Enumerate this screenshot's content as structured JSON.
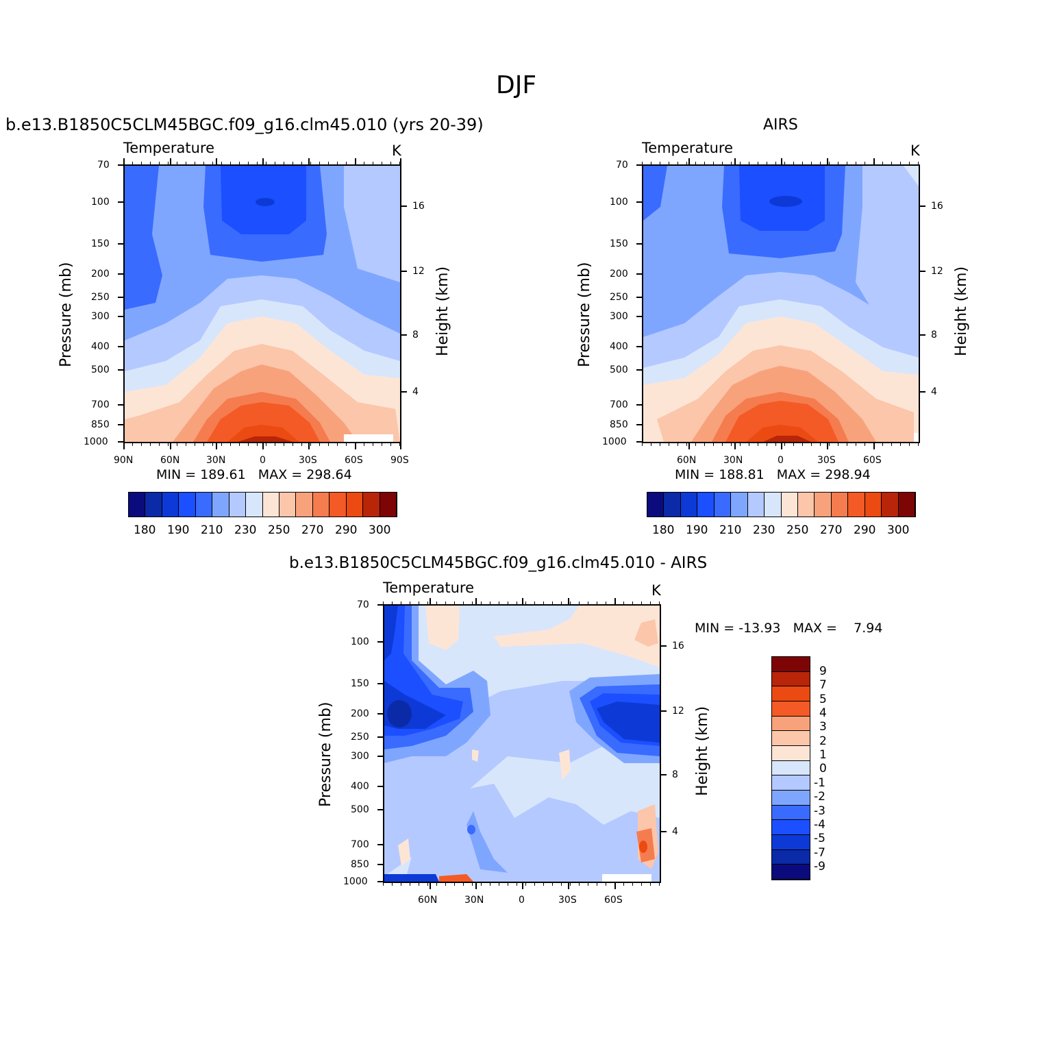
{
  "figure": {
    "title": "DJF"
  },
  "chart_data": [
    {
      "type": "heatmap",
      "id": "model",
      "title": "b.e13.B1850C5CLM45BGC.f09_g16.clm45.010 (yrs 20-39)",
      "left_string": "Temperature",
      "right_string": "K",
      "ylabel": "Pressure (mb)",
      "y2label": "Height (km)",
      "x_ticks": [
        "90N",
        "60N",
        "30N",
        "0",
        "30S",
        "60S",
        "90S"
      ],
      "y_ticks": [
        "70",
        "100",
        "150",
        "200",
        "250",
        "300",
        "400",
        "500",
        "700",
        "850",
        "1000"
      ],
      "y2_ticks": [
        "16",
        "12",
        "8",
        "4"
      ],
      "stats": "MIN = 189.61   MAX = 298.64",
      "colorbar_labels": [
        "180",
        "190",
        "210",
        "230",
        "250",
        "270",
        "290",
        "300"
      ],
      "colorbar_colors": [
        "#0b0b7d",
        "#0a2aa8",
        "#0d3ad6",
        "#1c4fff",
        "#3a6bff",
        "#7fa6ff",
        "#b4c9ff",
        "#d8e6fb",
        "#fde5d6",
        "#fbc6aa",
        "#f8a27c",
        "#f57c4f",
        "#f45a25",
        "#eb4a12",
        "#b82508",
        "#7e0505"
      ],
      "levels": [
        180,
        185,
        190,
        200,
        210,
        220,
        230,
        240,
        250,
        260,
        270,
        280,
        290,
        295,
        300
      ]
    },
    {
      "type": "heatmap",
      "id": "obs",
      "title": "AIRS",
      "left_string": "Temperature",
      "right_string": "K",
      "ylabel": "Pressure (mb)",
      "y2label": "Height (km)",
      "x_ticks": [
        "60N",
        "30N",
        "0",
        "30S",
        "60S"
      ],
      "y_ticks": [
        "70",
        "100",
        "150",
        "200",
        "250",
        "300",
        "400",
        "500",
        "700",
        "850",
        "1000"
      ],
      "y2_ticks": [
        "16",
        "12",
        "8",
        "4"
      ],
      "stats": "MIN = 188.81   MAX = 298.94",
      "colorbar_labels": [
        "180",
        "190",
        "210",
        "230",
        "250",
        "270",
        "290",
        "300"
      ],
      "colorbar_colors": [
        "#0b0b7d",
        "#0a2aa8",
        "#0d3ad6",
        "#1c4fff",
        "#3a6bff",
        "#7fa6ff",
        "#b4c9ff",
        "#d8e6fb",
        "#fde5d6",
        "#fbc6aa",
        "#f8a27c",
        "#f57c4f",
        "#f45a25",
        "#eb4a12",
        "#b82508",
        "#7e0505"
      ]
    },
    {
      "type": "heatmap",
      "id": "diff",
      "title": "b.e13.B1850C5CLM45BGC.f09_g16.clm45.010 - AIRS",
      "left_string": "Temperature",
      "right_string": "K",
      "ylabel": "Pressure (mb)",
      "y2label": "Height (km)",
      "x_ticks": [
        "60N",
        "30N",
        "0",
        "30S",
        "60S"
      ],
      "y_ticks": [
        "70",
        "100",
        "150",
        "200",
        "250",
        "300",
        "400",
        "500",
        "700",
        "850",
        "1000"
      ],
      "y2_ticks": [
        "16",
        "12",
        "8",
        "4"
      ],
      "stats": "MIN = -13.93   MAX =    7.94",
      "colorbar_labels": [
        "9",
        "7",
        "5",
        "4",
        "3",
        "2",
        "1",
        "0",
        "-1",
        "-2",
        "-3",
        "-4",
        "-5",
        "-7",
        "-9"
      ],
      "colorbar_colors": [
        "#7e0505",
        "#b82508",
        "#eb4a12",
        "#f45a25",
        "#f8a27c",
        "#fbc6aa",
        "#fde5d6",
        "#d8e6fb",
        "#b4c9ff",
        "#7fa6ff",
        "#3a6bff",
        "#1c4fff",
        "#0d3ad6",
        "#0a2aa8",
        "#0b0b7d"
      ]
    }
  ]
}
